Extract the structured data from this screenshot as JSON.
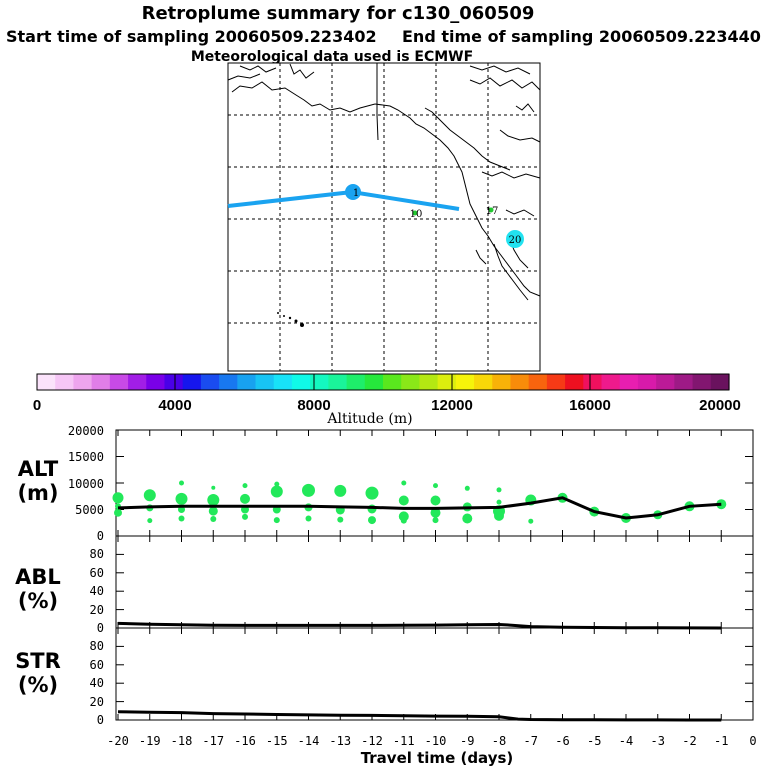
{
  "header": {
    "title": "Retroplume summary for c130_060509",
    "start_time": "Start time of sampling 20060509.223402",
    "end_time": "End time of sampling 20060509.223440",
    "met_data": "Meteorological data used is ECMWF"
  },
  "colors": {
    "trajectory": "#1aa3f0",
    "dot": "#22e85a",
    "line": "#000000",
    "marker_start": "#1aa3f0",
    "marker_20": "#22e2f0",
    "marker_green": "#22c830"
  },
  "map": {
    "markers": [
      {
        "label": "1",
        "color_key": "marker_start"
      },
      {
        "label": "10",
        "color_key": "marker_green"
      },
      {
        "label": "17",
        "color_key": "marker_green"
      },
      {
        "label": "20",
        "color_key": "marker_20"
      }
    ]
  },
  "colorbar": {
    "label": "Altitude (m)",
    "ticks": [
      "0",
      "4000",
      "8000",
      "12000",
      "16000",
      "20000"
    ],
    "colors": [
      "#fbe3fb",
      "#f6c6f6",
      "#eea5ee",
      "#e07ee8",
      "#c84ae6",
      "#a21ee6",
      "#7a00e8",
      "#4a00e8",
      "#1616ee",
      "#1a4cf0",
      "#1878f0",
      "#18a2f0",
      "#18c4f4",
      "#18e2f8",
      "#10fae8",
      "#14f8c0",
      "#1af49a",
      "#1eee6a",
      "#26e83c",
      "#5ae81e",
      "#8ae818",
      "#b4e812",
      "#dcee0e",
      "#f6f40a",
      "#f8d808",
      "#f8b208",
      "#f88c0a",
      "#f8640e",
      "#f63a16",
      "#ee1020",
      "#f0105e",
      "#ee1a8c",
      "#e81eb0",
      "#d81aaa",
      "#bc1a98",
      "#9e1a86",
      "#821670",
      "#6a125e"
    ]
  },
  "chart_data": [
    {
      "type": "scatter",
      "name": "ALT",
      "ylabel": [
        "ALT",
        "(m)"
      ],
      "ylim": [
        0,
        20000
      ],
      "yticks": [
        "0",
        "5000",
        "10000",
        "15000",
        "20000"
      ],
      "xlim": [
        -20,
        0
      ],
      "line": {
        "x": [
          -20,
          -19,
          -18,
          -17,
          -16,
          -15,
          -14,
          -13,
          -12,
          -11,
          -10,
          -9,
          -8,
          -7,
          -6,
          -5,
          -4,
          -3,
          -2,
          -1
        ],
        "y": [
          5300,
          5500,
          5600,
          5600,
          5600,
          5600,
          5600,
          5500,
          5400,
          5200,
          5200,
          5300,
          5400,
          6200,
          7200,
          4600,
          3400,
          4000,
          5600,
          6000
        ]
      },
      "dots": [
        {
          "x": -20,
          "y": 7200,
          "r": 5.5
        },
        {
          "x": -20,
          "y": 4400,
          "r": 4
        },
        {
          "x": -20,
          "y": 5600,
          "r": 3
        },
        {
          "x": -19,
          "y": 7700,
          "r": 6
        },
        {
          "x": -19,
          "y": 5300,
          "r": 3.5
        },
        {
          "x": -19,
          "y": 2900,
          "r": 2.5
        },
        {
          "x": -18,
          "y": 10000,
          "r": 2.5
        },
        {
          "x": -18,
          "y": 7000,
          "r": 6
        },
        {
          "x": -18,
          "y": 5000,
          "r": 3.5
        },
        {
          "x": -18,
          "y": 3300,
          "r": 3
        },
        {
          "x": -17,
          "y": 9100,
          "r": 2
        },
        {
          "x": -17,
          "y": 6800,
          "r": 6
        },
        {
          "x": -17,
          "y": 4700,
          "r": 4.5
        },
        {
          "x": -17,
          "y": 3200,
          "r": 3
        },
        {
          "x": -16,
          "y": 9500,
          "r": 2.5
        },
        {
          "x": -16,
          "y": 7000,
          "r": 5
        },
        {
          "x": -16,
          "y": 5000,
          "r": 4
        },
        {
          "x": -16,
          "y": 3600,
          "r": 3
        },
        {
          "x": -15,
          "y": 9800,
          "r": 2.5
        },
        {
          "x": -15,
          "y": 8400,
          "r": 6
        },
        {
          "x": -15,
          "y": 5000,
          "r": 4
        },
        {
          "x": -15,
          "y": 3000,
          "r": 3
        },
        {
          "x": -14,
          "y": 8600,
          "r": 6.5
        },
        {
          "x": -14,
          "y": 5400,
          "r": 4
        },
        {
          "x": -14,
          "y": 3300,
          "r": 3
        },
        {
          "x": -13,
          "y": 8500,
          "r": 6
        },
        {
          "x": -13,
          "y": 4900,
          "r": 4.5
        },
        {
          "x": -13,
          "y": 3100,
          "r": 3
        },
        {
          "x": -12,
          "y": 8100,
          "r": 6.5
        },
        {
          "x": -12,
          "y": 5100,
          "r": 4.5
        },
        {
          "x": -12,
          "y": 3000,
          "r": 4
        },
        {
          "x": -11,
          "y": 10000,
          "r": 2.5
        },
        {
          "x": -11,
          "y": 6700,
          "r": 5
        },
        {
          "x": -11,
          "y": 3700,
          "r": 5
        },
        {
          "x": -11,
          "y": 2900,
          "r": 3
        },
        {
          "x": -10,
          "y": 9500,
          "r": 2.5
        },
        {
          "x": -10,
          "y": 6700,
          "r": 5
        },
        {
          "x": -10,
          "y": 4400,
          "r": 5
        },
        {
          "x": -10,
          "y": 3000,
          "r": 3
        },
        {
          "x": -9,
          "y": 9000,
          "r": 2.5
        },
        {
          "x": -9,
          "y": 5500,
          "r": 4.5
        },
        {
          "x": -9,
          "y": 3300,
          "r": 5
        },
        {
          "x": -8,
          "y": 8700,
          "r": 2.5
        },
        {
          "x": -8,
          "y": 6400,
          "r": 2.5
        },
        {
          "x": -8,
          "y": 4700,
          "r": 6
        },
        {
          "x": -8,
          "y": 3800,
          "r": 5
        },
        {
          "x": -7,
          "y": 6800,
          "r": 5.5
        },
        {
          "x": -7,
          "y": 2800,
          "r": 2.5
        },
        {
          "x": -6,
          "y": 7200,
          "r": 5
        },
        {
          "x": -5,
          "y": 4600,
          "r": 5
        },
        {
          "x": -4,
          "y": 3400,
          "r": 5
        },
        {
          "x": -3,
          "y": 4000,
          "r": 4.5
        },
        {
          "x": -2,
          "y": 5600,
          "r": 5
        },
        {
          "x": -1,
          "y": 6000,
          "r": 5
        }
      ]
    },
    {
      "type": "line",
      "name": "ABL",
      "ylabel": [
        "ABL",
        "(%)"
      ],
      "ylim": [
        0,
        100
      ],
      "yticks": [
        "0",
        "20",
        "40",
        "60",
        "80"
      ],
      "xlim": [
        -20,
        0
      ],
      "x": [
        -20,
        -19,
        -18,
        -17,
        -16,
        -15,
        -14,
        -13,
        -12,
        -11,
        -10,
        -9,
        -8,
        -7.6,
        -7,
        -6,
        -5,
        -4,
        -3,
        -2,
        -1
      ],
      "y": [
        5,
        4,
        3.5,
        3,
        2.8,
        2.8,
        2.8,
        2.8,
        2.8,
        3,
        3.2,
        3.5,
        3.8,
        3,
        1.5,
        0.8,
        0.5,
        0.3,
        0.2,
        0.1,
        0
      ]
    },
    {
      "type": "line",
      "name": "STR",
      "ylabel": [
        "STR",
        "(%)"
      ],
      "ylim": [
        0,
        100
      ],
      "yticks": [
        "0",
        "20",
        "40",
        "60",
        "80"
      ],
      "xlim": [
        -20,
        0
      ],
      "x": [
        -20,
        -19,
        -18,
        -17,
        -16,
        -15,
        -14,
        -13,
        -12,
        -11,
        -10,
        -9,
        -8,
        -7.4,
        -7,
        -6,
        -5,
        -4,
        -3,
        -2,
        -1
      ],
      "y": [
        9,
        8.5,
        8,
        7,
        6.5,
        6,
        5.5,
        5.2,
        5,
        4.6,
        4.2,
        4,
        3.6,
        1,
        0.5,
        0.3,
        0.2,
        0.1,
        0.1,
        0,
        0
      ]
    }
  ],
  "xaxis": {
    "label": "Travel time (days)",
    "ticks": [
      "-20",
      "-19",
      "-18",
      "-17",
      "-16",
      "-15",
      "-14",
      "-13",
      "-12",
      "-11",
      "-10",
      "-9",
      "-8",
      "-7",
      "-6",
      "-5",
      "-4",
      "-3",
      "-2",
      "-1",
      "0"
    ]
  }
}
